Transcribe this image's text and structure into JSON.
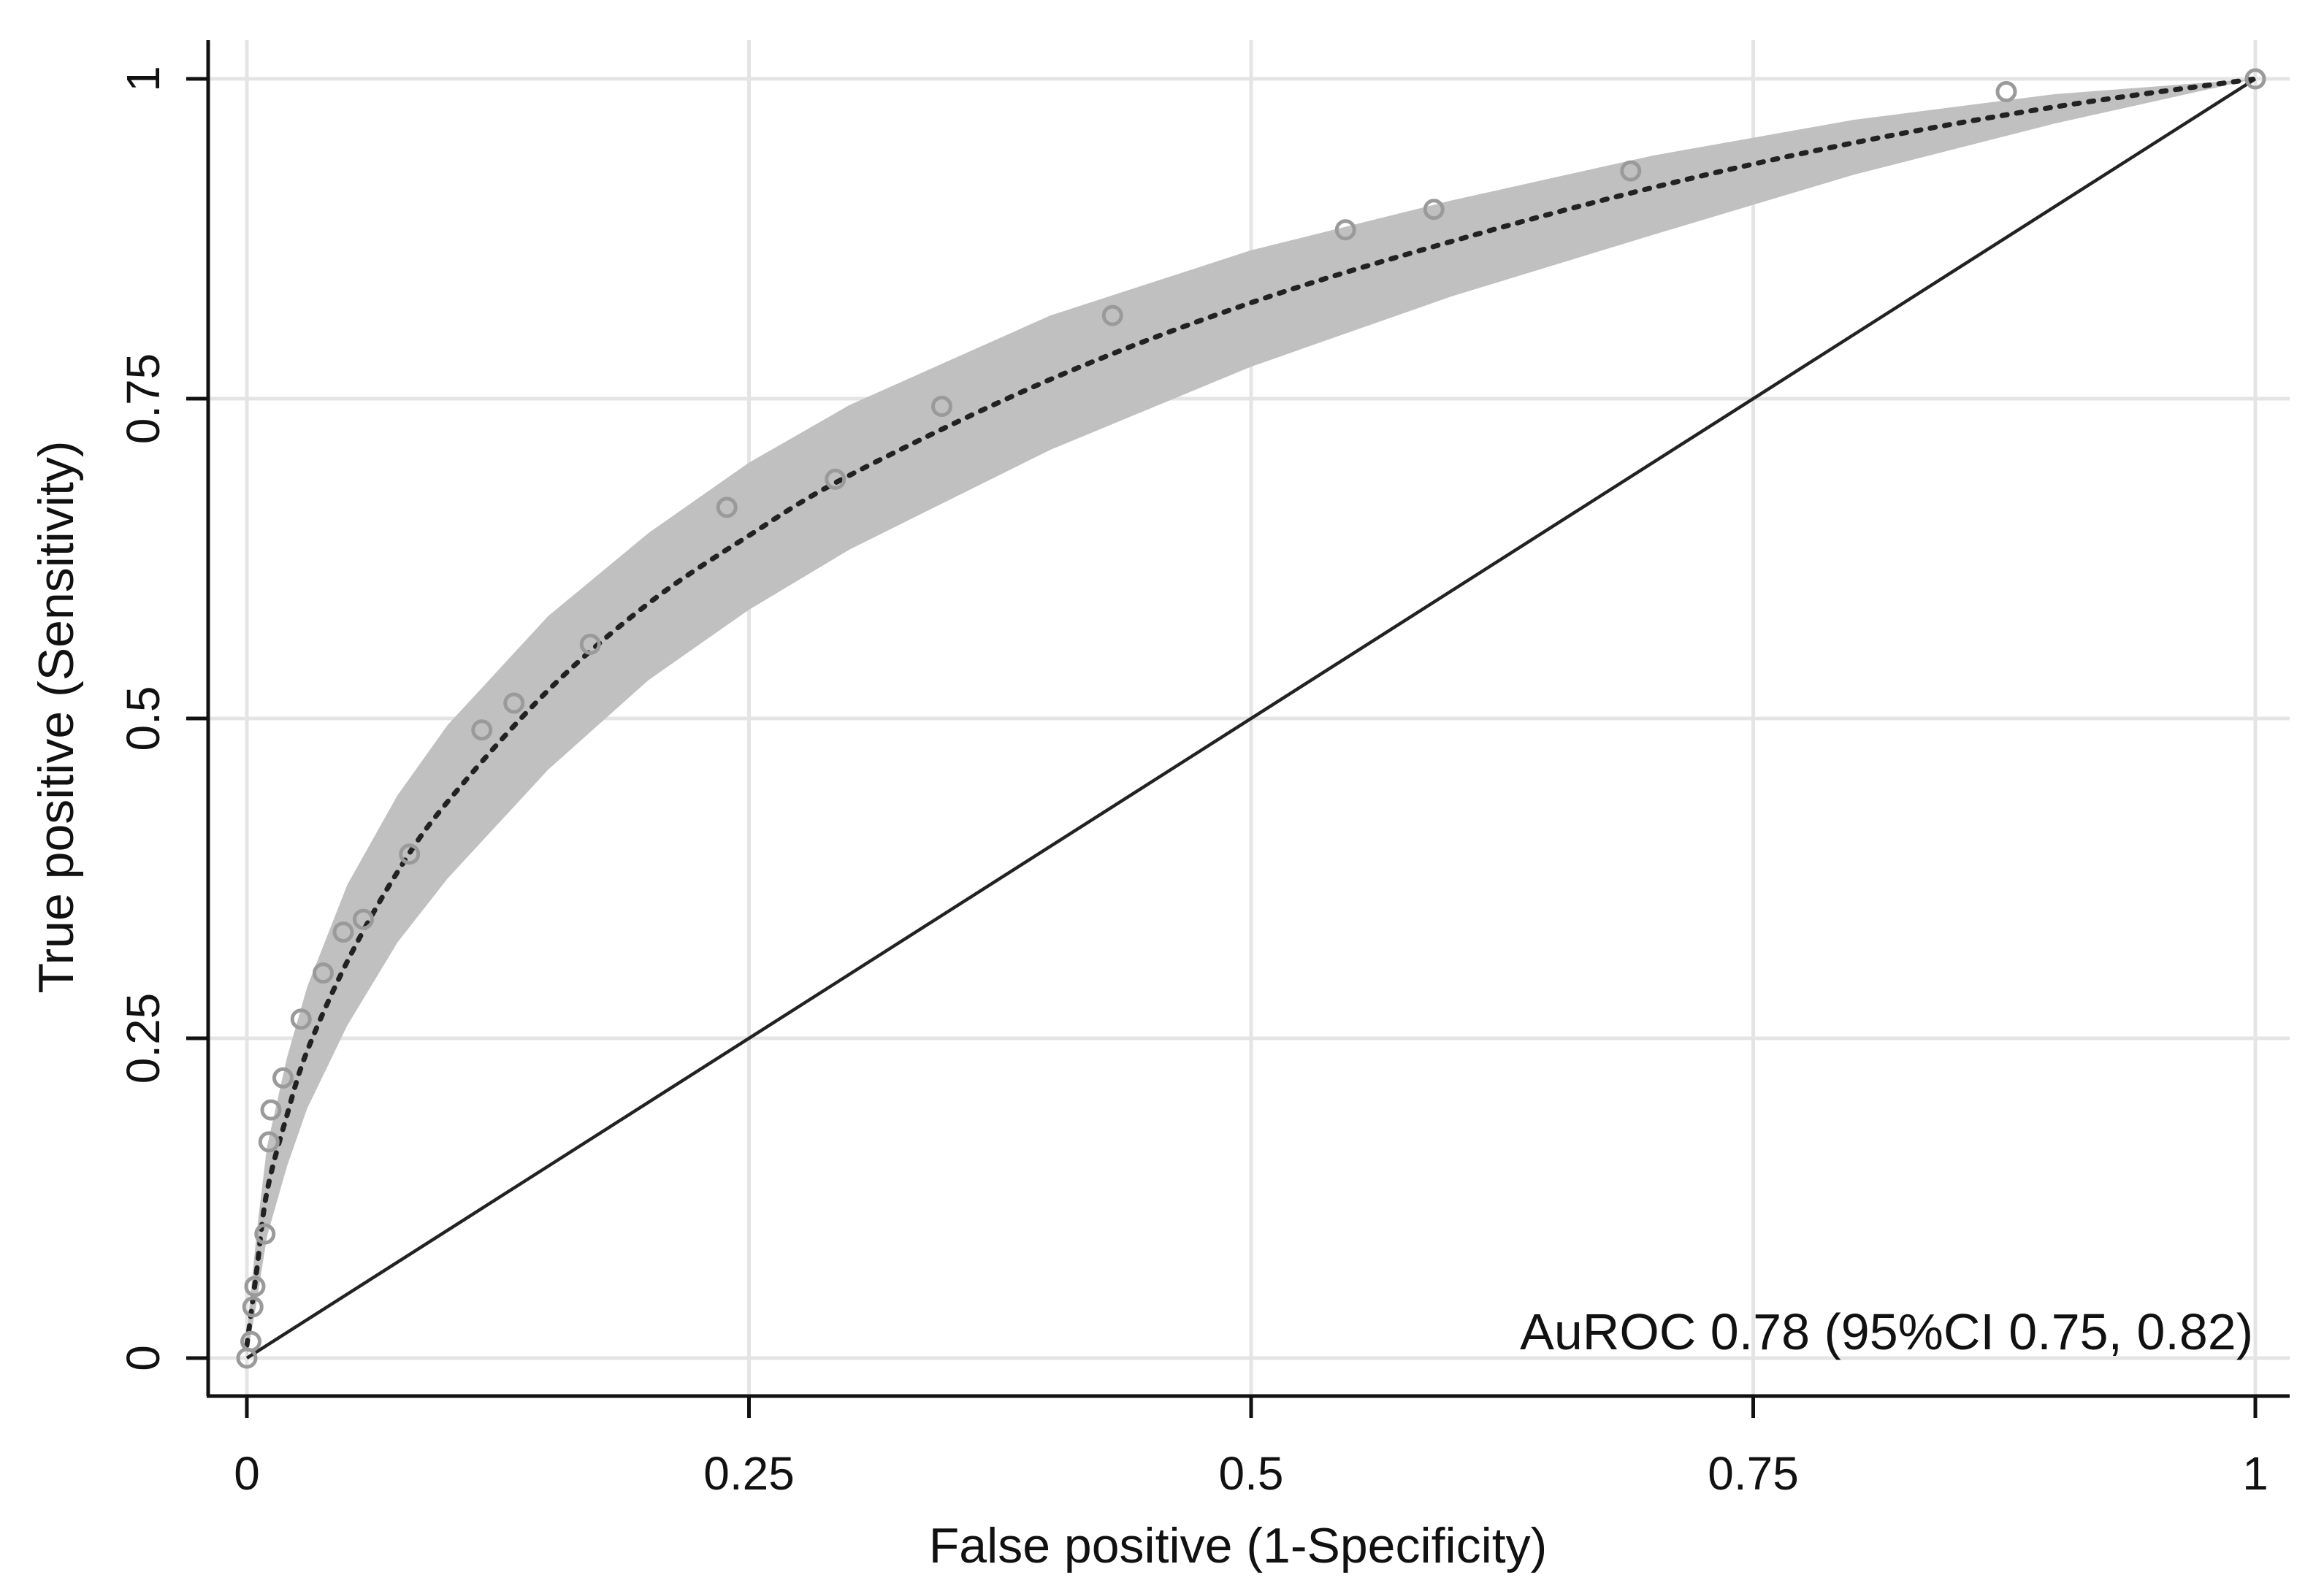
{
  "chart_data": {
    "type": "line",
    "xlabel": "False positive (1-Specificity)",
    "ylabel": "True positive (Sensitivity)",
    "xlim": [
      0,
      1
    ],
    "ylim": [
      0,
      1
    ],
    "x_ticks": [
      {
        "value": 0,
        "label": "0"
      },
      {
        "value": 0.25,
        "label": "0.25"
      },
      {
        "value": 0.5,
        "label": "0.5"
      },
      {
        "value": 0.75,
        "label": "0.75"
      },
      {
        "value": 1,
        "label": "1"
      }
    ],
    "y_ticks": [
      {
        "value": 0,
        "label": "0"
      },
      {
        "value": 0.25,
        "label": "0.25"
      },
      {
        "value": 0.5,
        "label": "0.5"
      },
      {
        "value": 0.75,
        "label": "0.75"
      },
      {
        "value": 1,
        "label": "1"
      }
    ],
    "grid": true,
    "annotation": "AuROC 0.78 (95%CI 0.75, 0.82)",
    "annotation_position": "bottom-right",
    "colors": {
      "band": "#c0c0c0",
      "points": "#9a9a9a",
      "lines": "#222222",
      "grid": "#e4e4e4"
    },
    "auc": 0.78,
    "auc_ci": [
      0.75,
      0.82
    ],
    "empirical_points": [
      {
        "x": 0.0,
        "y": 0.0
      },
      {
        "x": 0.002,
        "y": 0.013
      },
      {
        "x": 0.003,
        "y": 0.04
      },
      {
        "x": 0.004,
        "y": 0.056
      },
      {
        "x": 0.009,
        "y": 0.097
      },
      {
        "x": 0.011,
        "y": 0.169
      },
      {
        "x": 0.012,
        "y": 0.194
      },
      {
        "x": 0.018,
        "y": 0.219
      },
      {
        "x": 0.027,
        "y": 0.265
      },
      {
        "x": 0.038,
        "y": 0.301
      },
      {
        "x": 0.048,
        "y": 0.333
      },
      {
        "x": 0.058,
        "y": 0.343
      },
      {
        "x": 0.081,
        "y": 0.394
      },
      {
        "x": 0.117,
        "y": 0.491
      },
      {
        "x": 0.133,
        "y": 0.512
      },
      {
        "x": 0.171,
        "y": 0.558
      },
      {
        "x": 0.239,
        "y": 0.665
      },
      {
        "x": 0.293,
        "y": 0.687
      },
      {
        "x": 0.346,
        "y": 0.744
      },
      {
        "x": 0.431,
        "y": 0.815
      },
      {
        "x": 0.547,
        "y": 0.882
      },
      {
        "x": 0.591,
        "y": 0.898
      },
      {
        "x": 0.689,
        "y": 0.928
      },
      {
        "x": 0.876,
        "y": 0.99
      },
      {
        "x": 1.0,
        "y": 1.0
      }
    ],
    "fitted_curve": [
      {
        "x": 0.0,
        "y": 0.01
      },
      {
        "x": 0.005,
        "y": 0.07
      },
      {
        "x": 0.01,
        "y": 0.13
      },
      {
        "x": 0.02,
        "y": 0.19
      },
      {
        "x": 0.03,
        "y": 0.24
      },
      {
        "x": 0.05,
        "y": 0.31
      },
      {
        "x": 0.075,
        "y": 0.38
      },
      {
        "x": 0.1,
        "y": 0.435
      },
      {
        "x": 0.15,
        "y": 0.522
      },
      {
        "x": 0.2,
        "y": 0.59
      },
      {
        "x": 0.25,
        "y": 0.643
      },
      {
        "x": 0.3,
        "y": 0.69
      },
      {
        "x": 0.4,
        "y": 0.765
      },
      {
        "x": 0.5,
        "y": 0.825
      },
      {
        "x": 0.6,
        "y": 0.873
      },
      {
        "x": 0.7,
        "y": 0.915
      },
      {
        "x": 0.8,
        "y": 0.95
      },
      {
        "x": 0.9,
        "y": 0.978
      },
      {
        "x": 1.0,
        "y": 1.0
      }
    ],
    "band_upper": [
      {
        "x": 0.0,
        "y": 0.02
      },
      {
        "x": 0.005,
        "y": 0.1
      },
      {
        "x": 0.01,
        "y": 0.165
      },
      {
        "x": 0.02,
        "y": 0.235
      },
      {
        "x": 0.03,
        "y": 0.29
      },
      {
        "x": 0.05,
        "y": 0.37
      },
      {
        "x": 0.075,
        "y": 0.44
      },
      {
        "x": 0.1,
        "y": 0.495
      },
      {
        "x": 0.15,
        "y": 0.58
      },
      {
        "x": 0.2,
        "y": 0.645
      },
      {
        "x": 0.25,
        "y": 0.7
      },
      {
        "x": 0.3,
        "y": 0.745
      },
      {
        "x": 0.4,
        "y": 0.815
      },
      {
        "x": 0.5,
        "y": 0.866
      },
      {
        "x": 0.6,
        "y": 0.905
      },
      {
        "x": 0.7,
        "y": 0.94
      },
      {
        "x": 0.8,
        "y": 0.968
      },
      {
        "x": 0.9,
        "y": 0.988
      },
      {
        "x": 1.0,
        "y": 1.0
      }
    ],
    "band_lower": [
      {
        "x": 0.0,
        "y": 0.0
      },
      {
        "x": 0.005,
        "y": 0.045
      },
      {
        "x": 0.01,
        "y": 0.095
      },
      {
        "x": 0.02,
        "y": 0.15
      },
      {
        "x": 0.03,
        "y": 0.195
      },
      {
        "x": 0.05,
        "y": 0.26
      },
      {
        "x": 0.075,
        "y": 0.325
      },
      {
        "x": 0.1,
        "y": 0.375
      },
      {
        "x": 0.15,
        "y": 0.46
      },
      {
        "x": 0.2,
        "y": 0.53
      },
      {
        "x": 0.25,
        "y": 0.585
      },
      {
        "x": 0.3,
        "y": 0.632
      },
      {
        "x": 0.4,
        "y": 0.71
      },
      {
        "x": 0.5,
        "y": 0.775
      },
      {
        "x": 0.6,
        "y": 0.83
      },
      {
        "x": 0.7,
        "y": 0.878
      },
      {
        "x": 0.8,
        "y": 0.925
      },
      {
        "x": 0.9,
        "y": 0.965
      },
      {
        "x": 1.0,
        "y": 1.0
      }
    ],
    "reference_line": [
      {
        "x": 0,
        "y": 0
      },
      {
        "x": 1,
        "y": 1
      }
    ]
  }
}
